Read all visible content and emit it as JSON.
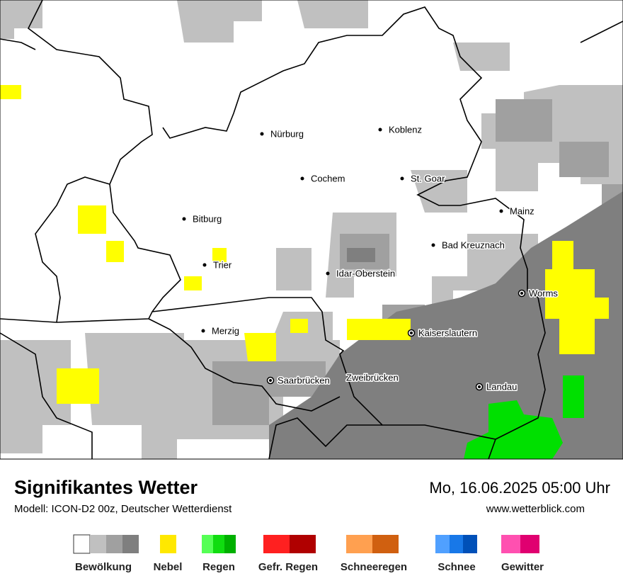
{
  "map": {
    "cities": [
      "Nürburg",
      "Koblenz",
      "Cochem",
      "St. Goar",
      "Mainz",
      "Bitburg",
      "Bad Kreuznach",
      "Trier",
      "Idar-Oberstein",
      "Worms",
      "Kaiserslautern",
      "Merzig",
      "Saarbrücken",
      "Zweibrücken",
      "Landau"
    ]
  },
  "footer": {
    "title": "Signifikantes Wetter",
    "subtitle": "Modell: ICON-D2 00z, Deutscher Wetterdienst",
    "date": "Mo, 16.06.2025 05:00 Uhr",
    "website": "www.wetterblick.com"
  },
  "legend": [
    "Bewölkung",
    "Nebel",
    "Regen",
    "Gefr. Regen",
    "Schneeregen",
    "Schnee",
    "Gewitter"
  ]
}
